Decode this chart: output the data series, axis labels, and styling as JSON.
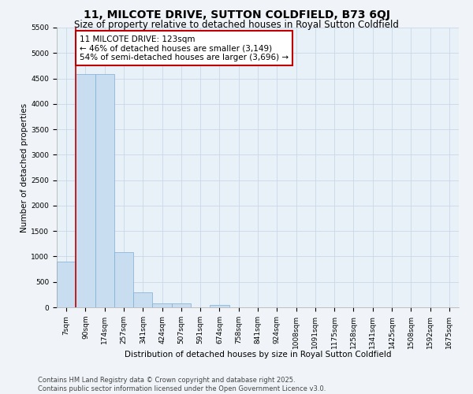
{
  "title": "11, MILCOTE DRIVE, SUTTON COLDFIELD, B73 6QJ",
  "subtitle": "Size of property relative to detached houses in Royal Sutton Coldfield",
  "xlabel": "Distribution of detached houses by size in Royal Sutton Coldfield",
  "ylabel": "Number of detached properties",
  "categories": [
    "7sqm",
    "90sqm",
    "174sqm",
    "257sqm",
    "341sqm",
    "424sqm",
    "507sqm",
    "591sqm",
    "674sqm",
    "758sqm",
    "841sqm",
    "924sqm",
    "1008sqm",
    "1091sqm",
    "1175sqm",
    "1258sqm",
    "1341sqm",
    "1425sqm",
    "1508sqm",
    "1592sqm",
    "1675sqm"
  ],
  "values": [
    900,
    4580,
    4580,
    1080,
    290,
    80,
    80,
    0,
    45,
    0,
    0,
    0,
    0,
    0,
    0,
    0,
    0,
    0,
    0,
    0,
    0
  ],
  "bar_color": "#c9ddf0",
  "bar_edge_color": "#7bafd4",
  "vline_x_index": 0.5,
  "vline_color": "#c00000",
  "annotation_text": "11 MILCOTE DRIVE: 123sqm\n← 46% of detached houses are smaller (3,149)\n54% of semi-detached houses are larger (3,696) →",
  "annotation_box_color": "#ffffff",
  "annotation_box_edge": "#c00000",
  "ylim": [
    0,
    5500
  ],
  "yticks": [
    0,
    500,
    1000,
    1500,
    2000,
    2500,
    3000,
    3500,
    4000,
    4500,
    5000,
    5500
  ],
  "bg_color": "#f0f4f8",
  "plot_bg_color": "#e8f0f8",
  "grid_color": "#c8d8e8",
  "footer": "Contains HM Land Registry data © Crown copyright and database right 2025.\nContains public sector information licensed under the Open Government Licence v3.0.",
  "title_fontsize": 10,
  "subtitle_fontsize": 8.5,
  "axis_label_fontsize": 7.5,
  "tick_fontsize": 6.5,
  "footer_fontsize": 6,
  "annot_fontsize": 7.5
}
